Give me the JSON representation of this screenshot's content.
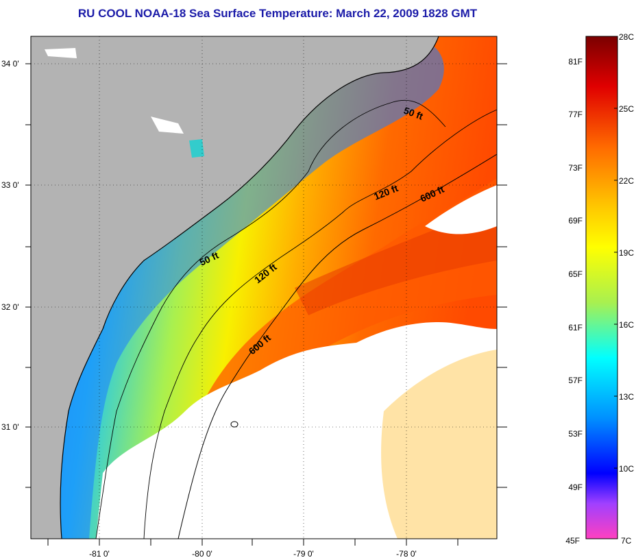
{
  "title": "RU COOL  NOAA-18  Sea Surface Temperature:  March 22, 2009 1828 GMT",
  "lat_labels": [
    "34 0'",
    "33 0'",
    "32 0'",
    "31 0'"
  ],
  "lon_labels": [
    "-81 0'",
    "-80 0'",
    "-79 0'",
    "-78 0'"
  ],
  "contour_labels": {
    "c50_north": "50 ft",
    "c50_south": "50 ft",
    "c120_north": "120 ft",
    "c120_south": "120 ft",
    "c600_north": "600 ft",
    "c600_south": "600 ft"
  },
  "colorbar": {
    "fahrenheit": [
      "81F",
      "77F",
      "73F",
      "69F",
      "65F",
      "61F",
      "57F",
      "53F",
      "49F",
      "45F"
    ],
    "celsius": [
      "28C",
      "25C",
      "22C",
      "19C",
      "16C",
      "13C",
      "10C",
      "7C"
    ],
    "colors": [
      "#7a0000",
      "#e00000",
      "#ff6a00",
      "#ffc800",
      "#ffff00",
      "#a8f050",
      "#00ffff",
      "#0090ff",
      "#0000ff",
      "#a040ff",
      "#ff40c0"
    ]
  },
  "colors": {
    "land": "#b3b3b3",
    "cloud": "#ffffff",
    "title": "#1a1aa8"
  }
}
